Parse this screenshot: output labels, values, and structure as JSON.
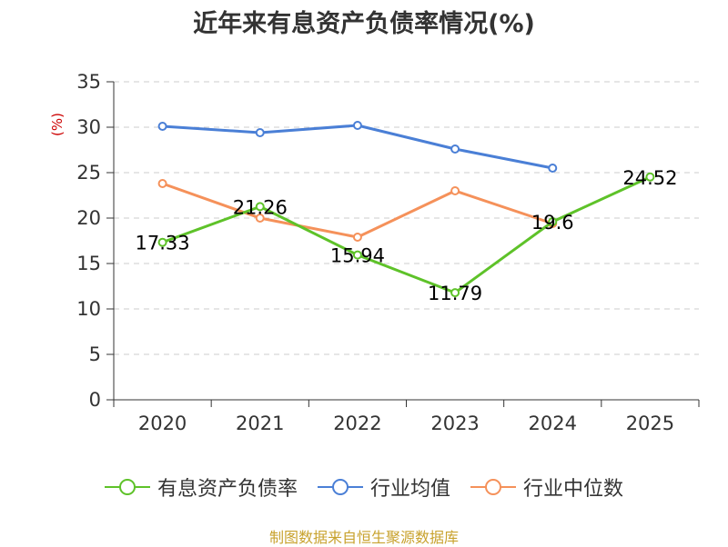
{
  "chart_data": {
    "type": "line",
    "title": "近年来有息资产负债率情况(%)",
    "ylabel": "(%)",
    "xlabel": "",
    "categories": [
      "2020",
      "2021",
      "2022",
      "2023",
      "2024",
      "2025"
    ],
    "ylim": [
      0,
      35
    ],
    "yticks": [
      0,
      5,
      10,
      15,
      20,
      25,
      30,
      35
    ],
    "grid": "horizontal-dashed",
    "legend_position": "bottom",
    "series": [
      {
        "name": "有息资产负债率",
        "color": "#5ec229",
        "values": [
          17.33,
          21.26,
          15.94,
          11.79,
          19.6,
          24.52
        ],
        "labels": [
          "17.33",
          "21.26",
          "15.94",
          "11.79",
          "19.6",
          "24.52"
        ]
      },
      {
        "name": "行业均值",
        "color": "#4a7fd6",
        "values": [
          30.1,
          29.4,
          30.2,
          27.6,
          25.5,
          null
        ]
      },
      {
        "name": "行业中位数",
        "color": "#f5915a",
        "values": [
          23.8,
          20.0,
          17.9,
          23.0,
          19.4,
          null
        ]
      }
    ]
  },
  "footer": {
    "source": "制图数据来自恒生聚源数据库"
  }
}
